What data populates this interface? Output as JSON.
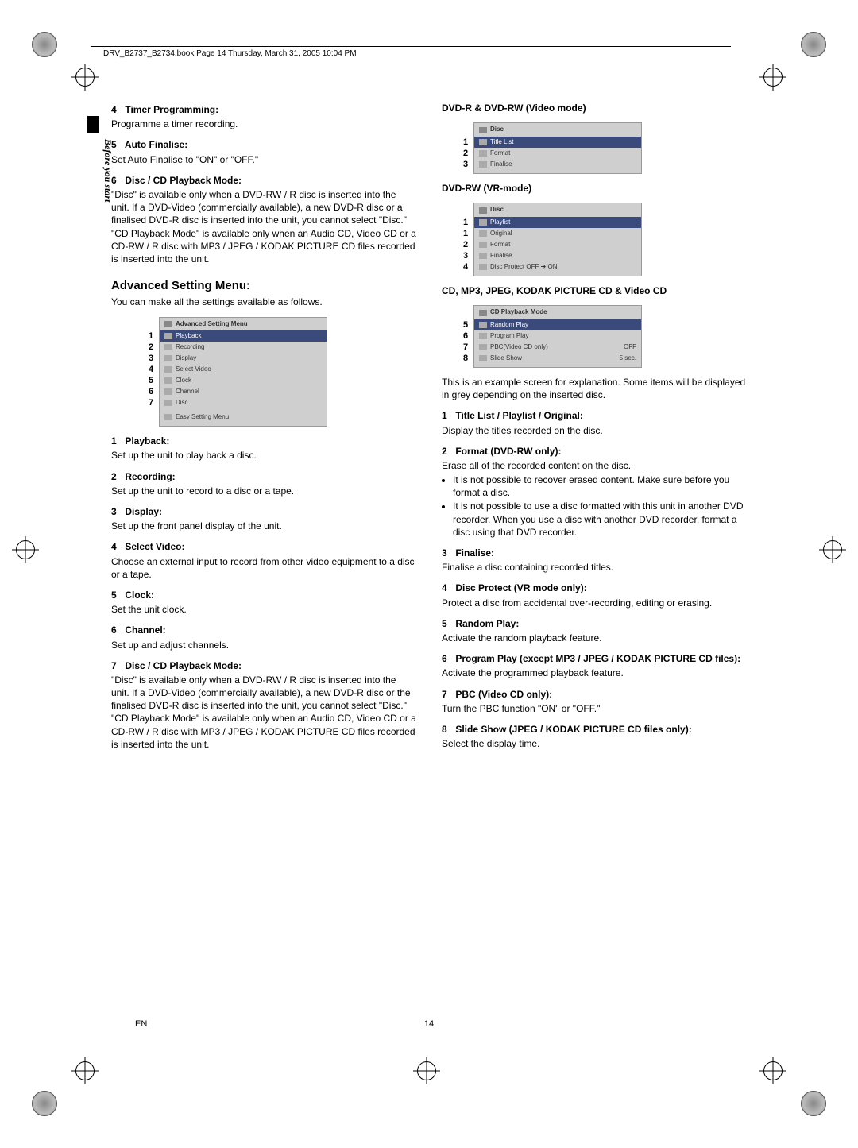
{
  "header_text": "DRV_B2737_B2734.book  Page 14  Thursday, March 31, 2005  10:04 PM",
  "side_label": "Before you start",
  "page_number": "14",
  "page_lang": "EN",
  "left": {
    "items_top": [
      {
        "n": "4",
        "title": "Timer Programming:",
        "body": "Programme a timer recording."
      },
      {
        "n": "5",
        "title": "Auto Finalise:",
        "body": "Set Auto Finalise to \"ON\" or \"OFF.\""
      },
      {
        "n": "6",
        "title": "Disc / CD Playback Mode:",
        "body": "\"Disc\" is available only when a DVD-RW / R disc is inserted into the unit. If a DVD-Video (commercially available), a new DVD-R disc or a finalised DVD-R disc is inserted into the unit, you cannot select \"Disc.\" \"CD Playback Mode\" is available only when an Audio CD, Video CD or a CD-RW / R disc with MP3 / JPEG / KODAK PICTURE CD files recorded is inserted into the unit."
      }
    ],
    "section_title": "Advanced Setting Menu:",
    "section_intro": "You can make all the settings available as follows.",
    "menu": {
      "title": "Advanced Setting Menu",
      "rows": [
        {
          "n": "1",
          "label": "Playback",
          "sel": true
        },
        {
          "n": "2",
          "label": "Recording"
        },
        {
          "n": "3",
          "label": "Display"
        },
        {
          "n": "4",
          "label": "Select Video"
        },
        {
          "n": "5",
          "label": "Clock"
        },
        {
          "n": "6",
          "label": "Channel"
        },
        {
          "n": "7",
          "label": "Disc"
        }
      ],
      "footer": "Easy Setting Menu"
    },
    "items_bottom": [
      {
        "n": "1",
        "title": "Playback:",
        "body": "Set up the unit to play back a disc."
      },
      {
        "n": "2",
        "title": "Recording:",
        "body": "Set up the unit to record to a disc or a tape."
      },
      {
        "n": "3",
        "title": "Display:",
        "body": "Set up the front panel display of the unit."
      },
      {
        "n": "4",
        "title": "Select Video:",
        "body": "Choose an external input to record from other video equipment to a disc or a tape."
      },
      {
        "n": "5",
        "title": "Clock:",
        "body": "Set the unit clock."
      },
      {
        "n": "6",
        "title": "Channel:",
        "body": "Set up and adjust channels."
      },
      {
        "n": "7",
        "title": "Disc / CD Playback Mode:",
        "body": "\"Disc\" is available only when a DVD-RW / R disc is inserted into the unit. If a DVD-Video (commercially available), a new DVD-R disc or the finalised DVD-R disc is inserted into the unit, you cannot select \"Disc.\" \"CD Playback Mode\" is available only when an Audio CD, Video CD or a CD-RW / R disc with MP3 / JPEG / KODAK PICTURE CD files recorded is inserted into the unit."
      }
    ]
  },
  "right": {
    "h1": "DVD-R & DVD-RW (Video mode)",
    "menu1": {
      "title": "Disc",
      "rows": [
        {
          "n": "1",
          "label": "Title List",
          "sel": true
        },
        {
          "n": "2",
          "label": "Format"
        },
        {
          "n": "3",
          "label": "Finalise"
        }
      ]
    },
    "h2": "DVD-RW (VR-mode)",
    "menu2": {
      "title": "Disc",
      "rows": [
        {
          "n": "1",
          "label": "Playlist",
          "sel": true
        },
        {
          "n": "1",
          "label": "Original"
        },
        {
          "n": "2",
          "label": "Format"
        },
        {
          "n": "3",
          "label": "Finalise"
        },
        {
          "n": "4",
          "label": "Disc Protect OFF ➔ ON"
        }
      ]
    },
    "h3": "CD, MP3, JPEG, KODAK PICTURE CD & Video CD",
    "menu3": {
      "title": "CD Playback Mode",
      "rows": [
        {
          "n": "5",
          "label": "Random Play",
          "sel": true
        },
        {
          "n": "6",
          "label": "Program Play"
        },
        {
          "n": "7",
          "label": "PBC(Video CD only)",
          "val": "OFF"
        },
        {
          "n": "8",
          "label": "Slide Show",
          "val": "5 sec."
        }
      ]
    },
    "note": "This is an example screen for explanation. Some items will be displayed in grey depending on the inserted disc.",
    "items": [
      {
        "n": "1",
        "title": "Title List / Playlist / Original:",
        "body": "Display the titles recorded on the disc."
      },
      {
        "n": "2",
        "title": "Format (DVD-RW only):",
        "body": "Erase all of the recorded content on the disc.",
        "bullets": [
          "It is not possible to recover erased content. Make sure before you format a disc.",
          "It is not possible to use a disc formatted with this unit in another DVD recorder. When you use a disc with another DVD recorder, format a disc using that DVD recorder."
        ]
      },
      {
        "n": "3",
        "title": "Finalise:",
        "body": "Finalise a disc containing recorded titles."
      },
      {
        "n": "4",
        "title": "Disc Protect (VR mode only):",
        "body": "Protect a disc from accidental over-recording, editing or erasing."
      },
      {
        "n": "5",
        "title": "Random Play:",
        "body": "Activate the random playback feature."
      },
      {
        "n": "6",
        "title": "Program Play (except MP3 / JPEG / KODAK PICTURE CD files):",
        "body": "Activate the programmed playback feature."
      },
      {
        "n": "7",
        "title": "PBC (Video CD only):",
        "body": "Turn the PBC function \"ON\" or \"OFF.\""
      },
      {
        "n": "8",
        "title": "Slide Show (JPEG / KODAK PICTURE CD files only):",
        "body": "Select the display time."
      }
    ]
  }
}
